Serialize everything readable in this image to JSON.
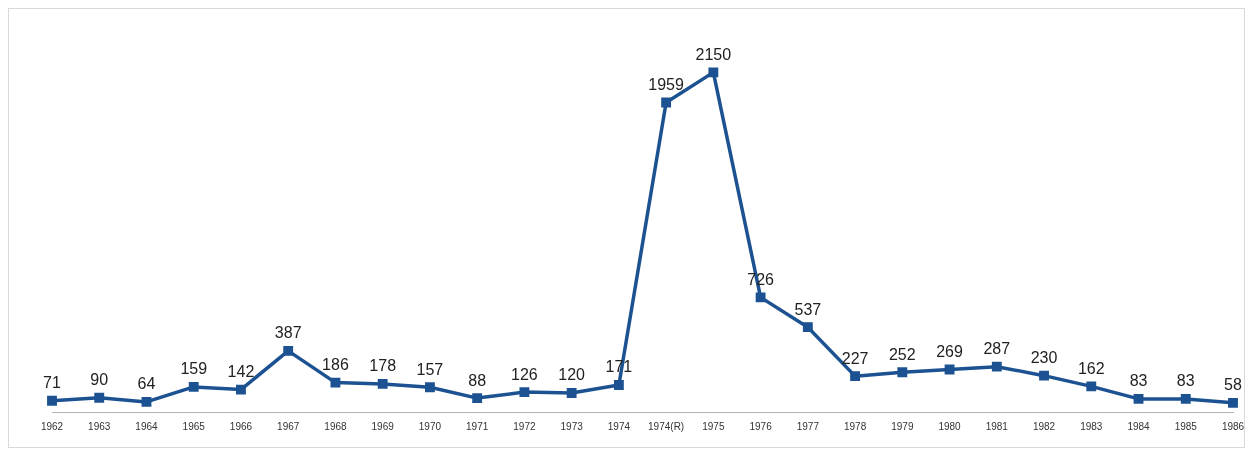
{
  "chart_data": {
    "type": "line",
    "categories": [
      "1962",
      "1963",
      "1964",
      "1965",
      "1966",
      "1967",
      "1968",
      "1969",
      "1970",
      "1971",
      "1972",
      "1973",
      "1974",
      "1974(R)",
      "1975",
      "1976",
      "1977",
      "1978",
      "1979",
      "1980",
      "1981",
      "1982",
      "1983",
      "1984",
      "1985",
      "1986"
    ],
    "series": [
      {
        "color": "#1c5291",
        "values": [
          71,
          90,
          64,
          159,
          142,
          387,
          186,
          178,
          157,
          88,
          126,
          120,
          171,
          1959,
          2150,
          726,
          537,
          227,
          252,
          269,
          287,
          230,
          162,
          83,
          83,
          58
        ]
      }
    ],
    "data_labels": true,
    "marker": "square",
    "line_style": "solid",
    "grid": false,
    "legend": false,
    "tick_labels": "x"
  }
}
